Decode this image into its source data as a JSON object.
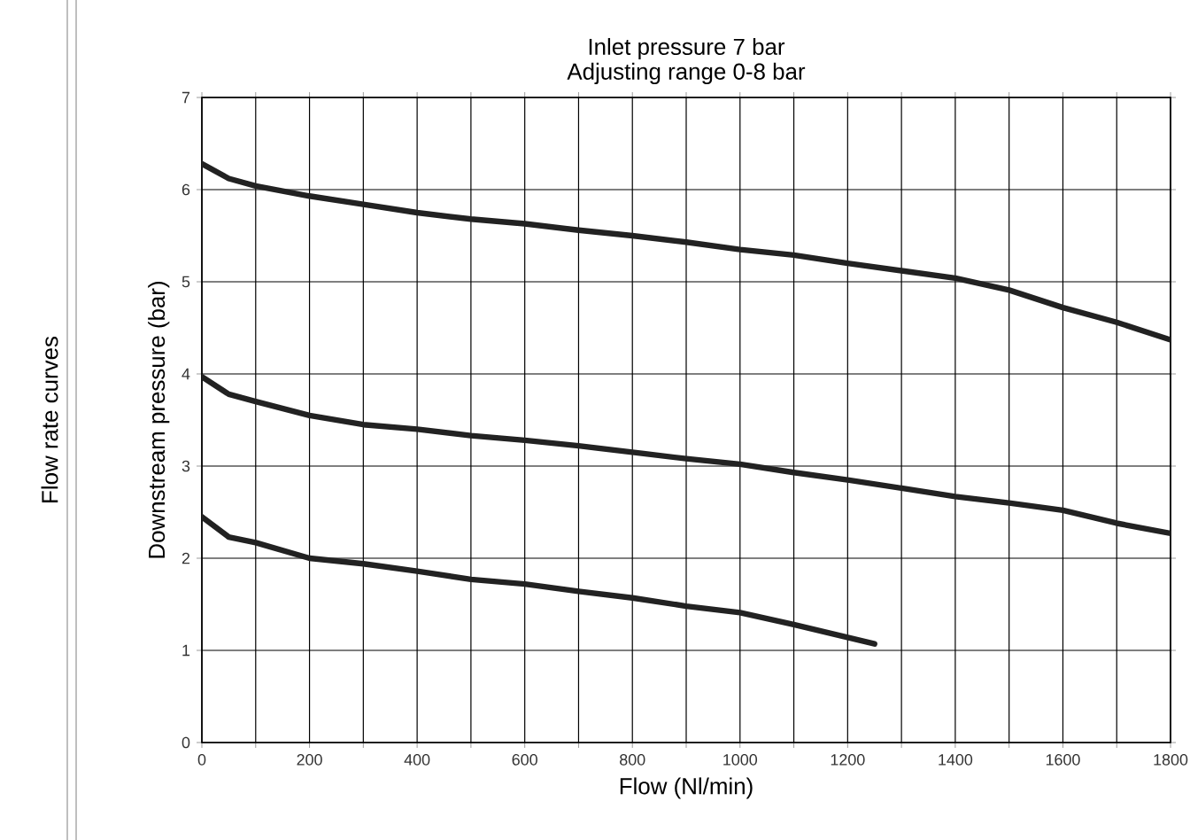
{
  "chart_data": {
    "type": "line",
    "title": "Inlet pressure 7 bar",
    "subtitle": "Adjusting range 0-8 bar",
    "xlabel": "Flow (Nl/min)",
    "ylabel": "Downstream pressure (bar)",
    "annotations": [
      "Flow rate curves"
    ],
    "series": [
      {
        "color": "#222222",
        "x": [
          0,
          50,
          100,
          200,
          300,
          400,
          500,
          600,
          700,
          800,
          900,
          1000,
          1100,
          1200,
          1300,
          1400,
          1500,
          1600,
          1700,
          1800
        ],
        "values": [
          6.28,
          6.12,
          6.04,
          5.93,
          5.84,
          5.75,
          5.68,
          5.63,
          5.56,
          5.5,
          5.43,
          5.35,
          5.29,
          5.2,
          5.12,
          5.04,
          4.91,
          4.72,
          4.56,
          4.37
        ]
      },
      {
        "color": "#222222",
        "x": [
          0,
          50,
          100,
          200,
          300,
          400,
          500,
          600,
          700,
          800,
          900,
          1000,
          1100,
          1200,
          1300,
          1400,
          1500,
          1600,
          1700,
          1800
        ],
        "values": [
          3.97,
          3.78,
          3.7,
          3.55,
          3.45,
          3.4,
          3.33,
          3.28,
          3.22,
          3.15,
          3.08,
          3.02,
          2.93,
          2.85,
          2.76,
          2.67,
          2.6,
          2.52,
          2.38,
          2.27
        ]
      },
      {
        "color": "#222222",
        "x": [
          0,
          50,
          100,
          200,
          300,
          400,
          500,
          600,
          700,
          800,
          900,
          1000,
          1100,
          1200,
          1250
        ],
        "values": [
          2.45,
          2.23,
          2.17,
          2.0,
          1.94,
          1.86,
          1.77,
          1.72,
          1.64,
          1.57,
          1.48,
          1.41,
          1.28,
          1.14,
          1.07
        ]
      }
    ],
    "xlim": [
      0,
      1800
    ],
    "ylim": [
      0,
      7
    ],
    "xticks": [
      0,
      {
        "value": 100,
        "label": null
      },
      200,
      {
        "value": 300,
        "label": null
      },
      400,
      {
        "value": 500,
        "label": null
      },
      600,
      {
        "value": 700,
        "label": null
      },
      800,
      {
        "value": 900,
        "label": null
      },
      1000,
      {
        "value": 1100,
        "label": null
      },
      1200,
      {
        "value": 1300,
        "label": null
      },
      1400,
      {
        "value": 1500,
        "label": null
      },
      1600,
      {
        "value": 1700,
        "label": null
      },
      1800
    ],
    "yticks": [
      0,
      1,
      2,
      3,
      4,
      5,
      6,
      7
    ],
    "grid": true,
    "marker": "none",
    "line_style": "solid"
  }
}
